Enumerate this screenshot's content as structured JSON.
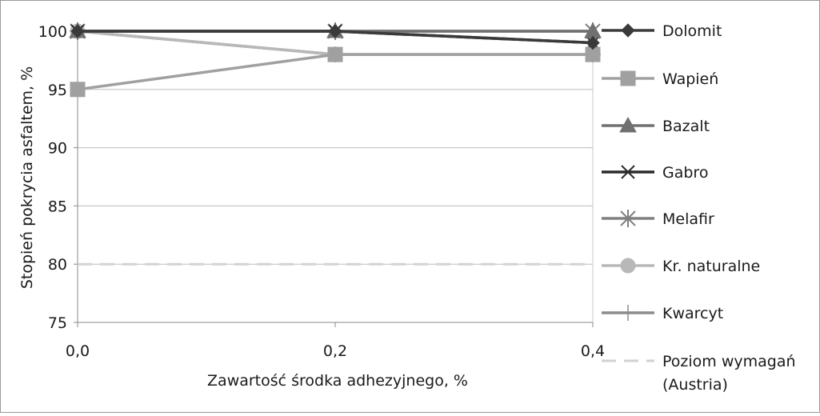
{
  "chart_data": {
    "type": "line",
    "x": [
      "0,0",
      "0,2",
      "0,4"
    ],
    "xlabel": "Zawartość środka adhezyjnego, %",
    "ylabel": "Stopień pokrycia asfaltem, %",
    "ylim": [
      75,
      100
    ],
    "yticks": [
      "75",
      "80",
      "85",
      "90",
      "95",
      "100"
    ],
    "grid": "horizontal",
    "legend_position": "right",
    "series": [
      {
        "name": "Dolomit",
        "values": [
          100,
          100,
          99
        ],
        "marker": "diamond",
        "color": "#3a3a3a",
        "dash": false
      },
      {
        "name": "Wapień",
        "values": [
          95,
          98,
          98
        ],
        "marker": "square",
        "color": "#a0a0a0",
        "dash": false
      },
      {
        "name": "Bazalt",
        "values": [
          100,
          100,
          100
        ],
        "marker": "triangle",
        "color": "#707070",
        "dash": false
      },
      {
        "name": "Gabro",
        "values": [
          100,
          100,
          99
        ],
        "marker": "x",
        "color": "#2a2a2a",
        "dash": false
      },
      {
        "name": "Melafir",
        "values": [
          100,
          100,
          100
        ],
        "marker": "star",
        "color": "#808080",
        "dash": false
      },
      {
        "name": "Kr. naturalne",
        "values": [
          100,
          98,
          98
        ],
        "marker": "circle",
        "color": "#b8b8b8",
        "dash": false
      },
      {
        "name": "Kwarcyt",
        "values": [
          100,
          98,
          98
        ],
        "marker": "plus",
        "color": "#8c8c8c",
        "dash": false
      },
      {
        "name": "Poziom wymagań\n(Austria)",
        "values": [
          80,
          80,
          80
        ],
        "marker": "none",
        "color": "#d2d2d2",
        "dash": true
      }
    ]
  }
}
